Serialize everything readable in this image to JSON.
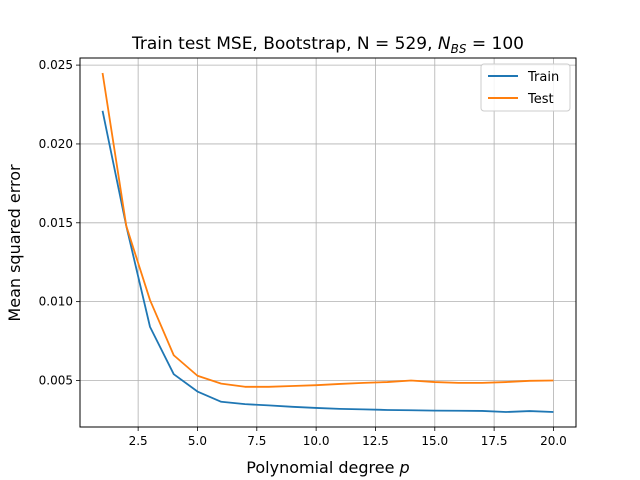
{
  "chart_data": {
    "type": "line",
    "title_parts": {
      "main": "Train test MSE, Bootstrap, N = 529, ",
      "var": "N",
      "sub": "BS",
      "tail": " = 100"
    },
    "xlabel_parts": {
      "text": "Polynomial degree ",
      "var": "p"
    },
    "ylabel": "Mean squared error",
    "xlim": [
      0.05,
      20.95
    ],
    "ylim": [
      0.00205,
      0.02545
    ],
    "xticks": [
      2.5,
      5.0,
      7.5,
      10.0,
      12.5,
      15.0,
      17.5,
      20.0
    ],
    "xtick_labels": [
      "2.5",
      "5.0",
      "7.5",
      "10.0",
      "12.5",
      "15.0",
      "17.5",
      "20.0"
    ],
    "yticks": [
      0.005,
      0.01,
      0.015,
      0.02,
      0.025
    ],
    "ytick_labels": [
      "0.005",
      "0.010",
      "0.015",
      "0.020",
      "0.025"
    ],
    "grid": true,
    "legend_position": "top-right",
    "x": [
      1,
      2,
      3,
      4,
      5,
      6,
      7,
      8,
      9,
      10,
      11,
      12,
      13,
      14,
      15,
      16,
      17,
      18,
      19,
      20
    ],
    "series": [
      {
        "name": "Train",
        "color": "#1f77b4",
        "values": [
          0.0221,
          0.0148,
          0.0084,
          0.0054,
          0.0043,
          0.00365,
          0.0035,
          0.00342,
          0.00333,
          0.00326,
          0.0032,
          0.00317,
          0.00313,
          0.00311,
          0.00309,
          0.00308,
          0.00307,
          0.003,
          0.00306,
          0.003
        ]
      },
      {
        "name": "Test",
        "color": "#ff7f0e",
        "values": [
          0.0245,
          0.0148,
          0.0101,
          0.0066,
          0.0053,
          0.0048,
          0.0046,
          0.0046,
          0.00465,
          0.0047,
          0.00478,
          0.00485,
          0.0049,
          0.005,
          0.0049,
          0.00485,
          0.00485,
          0.0049,
          0.00498,
          0.005
        ]
      }
    ]
  }
}
